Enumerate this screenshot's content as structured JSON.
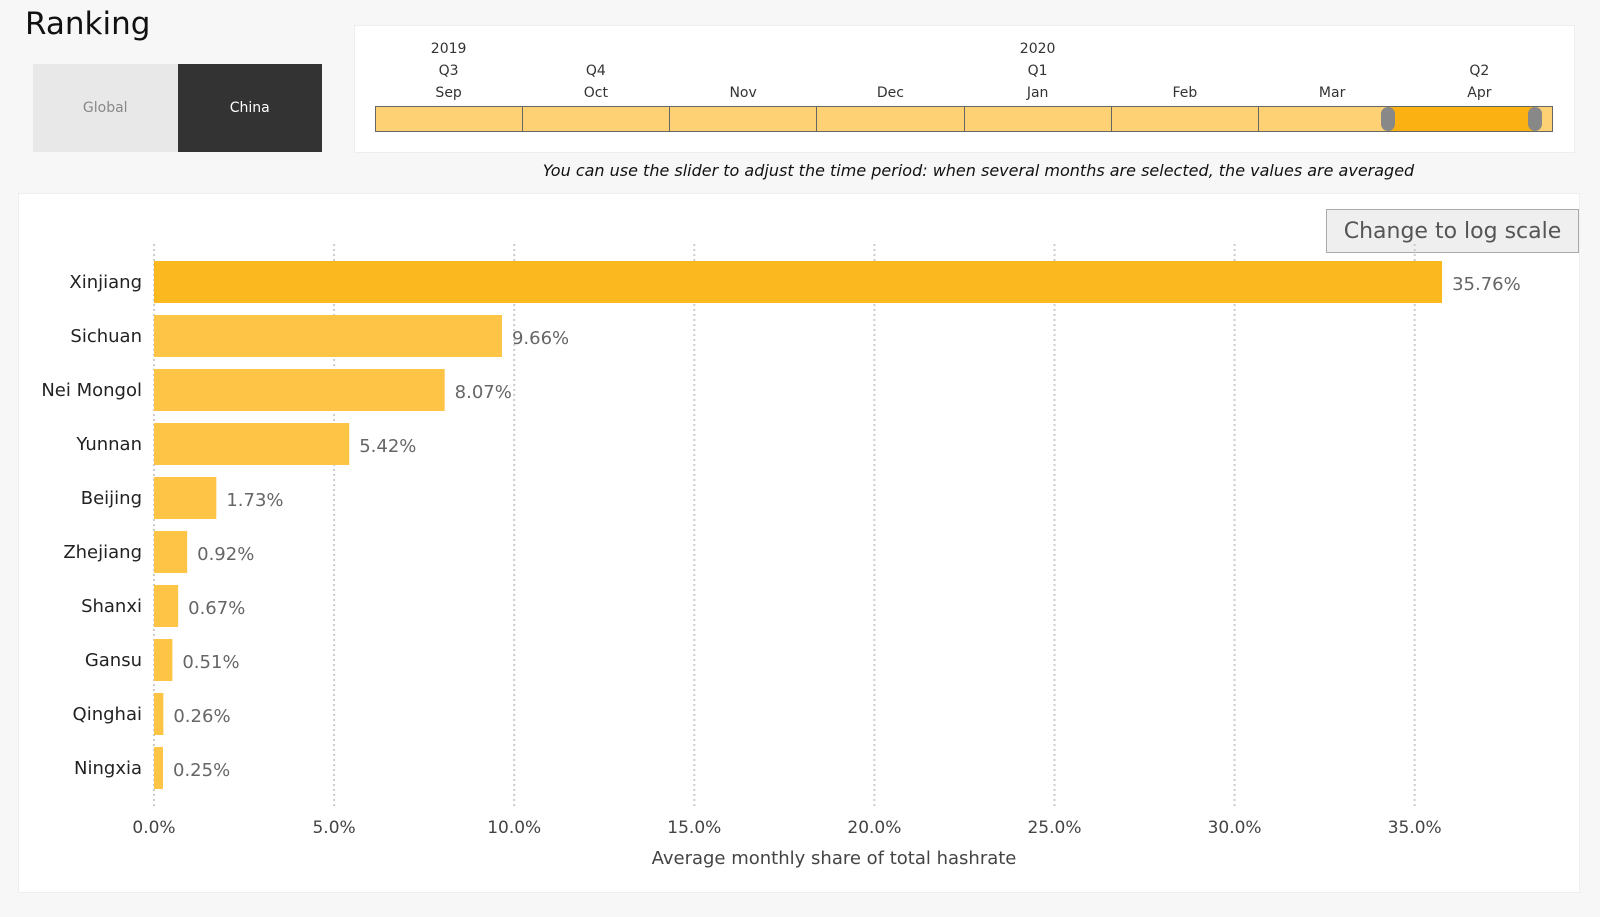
{
  "page": {
    "title": "Ranking"
  },
  "toggle": {
    "global_label": "Global",
    "china_label": "China",
    "selected": "China"
  },
  "timeline": {
    "years": [
      {
        "label": "2019",
        "month_index": 0
      },
      {
        "label": "2020",
        "month_index": 4
      }
    ],
    "quarters": [
      {
        "label": "Q3",
        "month_index": 0
      },
      {
        "label": "Q4",
        "month_index": 1
      },
      {
        "label": "Q1",
        "month_index": 4
      },
      {
        "label": "Q2",
        "month_index": 7
      }
    ],
    "months": [
      "Sep",
      "Oct",
      "Nov",
      "Dec",
      "Jan",
      "Feb",
      "Mar",
      "Apr"
    ],
    "selected_range": [
      "Apr",
      "Apr"
    ],
    "colors": {
      "track": "#fdd174",
      "selected": "#fbb112",
      "handle": "#888888"
    }
  },
  "hint": {
    "text": "You can use the slider to adjust the time period: when several months are selected, the values are averaged"
  },
  "log_button": {
    "label": "Change to log scale"
  },
  "chart_data": {
    "type": "bar",
    "orientation": "horizontal",
    "categories": [
      "Xinjiang",
      "Sichuan",
      "Nei Mongol",
      "Yunnan",
      "Beijing",
      "Zhejiang",
      "Shanxi",
      "Gansu",
      "Qinghai",
      "Ningxia"
    ],
    "values": [
      35.76,
      9.66,
      8.07,
      5.42,
      1.73,
      0.92,
      0.67,
      0.51,
      0.26,
      0.25
    ],
    "value_labels": [
      "35.76%",
      "9.66%",
      "8.07%",
      "5.42%",
      "1.73%",
      "0.92%",
      "0.67%",
      "0.51%",
      "0.26%",
      "0.25%"
    ],
    "xlabel": "Average monthly share of total hashrate",
    "ylabel": "",
    "xlim": [
      0,
      37.5
    ],
    "xticks": [
      0,
      5,
      10,
      15,
      20,
      25,
      30,
      35
    ],
    "xtick_labels": [
      "0.0%",
      "5.0%",
      "10.0%",
      "15.0%",
      "20.0%",
      "25.0%",
      "30.0%",
      "35.0%"
    ],
    "grid": "vertical dotted",
    "colors": {
      "bar_top": "#fbb91f",
      "bar": "#fdc445"
    }
  }
}
